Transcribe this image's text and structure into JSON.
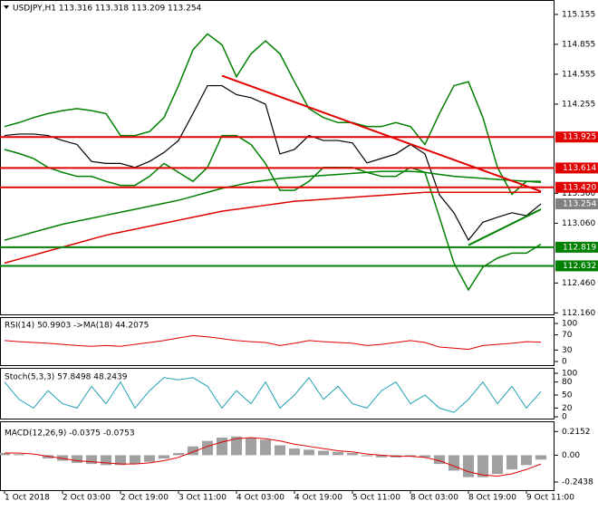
{
  "chart_data": [
    {
      "type": "line",
      "title": "USDJPY,H1  113.316 113.318 113.209 113.254",
      "categories": [
        "1 Oct 2018",
        null,
        null,
        null,
        "2 Oct 03:00",
        null,
        null,
        null,
        "2 Oct 19:00",
        null,
        null,
        null,
        "3 Oct 11:00",
        null,
        null,
        null,
        "4 Oct 03:00",
        null,
        null,
        null,
        "4 Oct 19:00",
        null,
        null,
        null,
        "5 Oct 11:00",
        null,
        null,
        null,
        "8 Oct 03:00",
        null,
        null,
        null,
        "8 Oct 19:00",
        null,
        null,
        null,
        "9 Oct 11:00",
        null
      ],
      "ylim": [
        112.145,
        115.3
      ],
      "yticks": [
        115.155,
        114.855,
        114.555,
        114.255,
        {
          "value": 113.36,
          "label": "113.360"
        },
        {
          "value": 113.06,
          "label": "113.060"
        },
        {
          "value": 112.46,
          "label": "112.460"
        },
        {
          "value": 112.16,
          "label": "112.160"
        }
      ],
      "series": [
        {
          "color": "#000000",
          "values": [
            113.94,
            113.955,
            113.955,
            113.94,
            113.89,
            113.85,
            113.68,
            113.66,
            113.66,
            113.62,
            113.68,
            113.77,
            113.89,
            114.16,
            114.44,
            114.44,
            114.35,
            114.32,
            114.255,
            113.755,
            113.8,
            113.94,
            113.89,
            113.89,
            113.865,
            113.665,
            113.71,
            113.755,
            113.85,
            113.755,
            113.345,
            113.165,
            112.89,
            113.07,
            113.12,
            113.165,
            113.135,
            113.254
          ]
        },
        {
          "color": "#008000",
          "values": [
            114.03,
            114.07,
            114.12,
            114.16,
            114.19,
            114.21,
            114.19,
            114.16,
            113.94,
            113.94,
            113.98,
            114.12,
            114.44,
            114.8,
            114.96,
            114.85,
            114.53,
            114.76,
            114.89,
            114.76,
            114.48,
            114.21,
            114.12,
            114.07,
            114.07,
            114.03,
            114.03,
            114.07,
            114.03,
            113.85,
            114.16,
            114.44,
            114.48,
            114.12,
            113.62,
            113.35,
            113.48,
            113.48
          ]
        },
        {
          "color": "#008000",
          "values": [
            113.8,
            113.76,
            113.71,
            113.62,
            113.57,
            113.53,
            113.53,
            113.48,
            113.44,
            113.44,
            113.53,
            113.66,
            113.57,
            113.48,
            113.62,
            113.94,
            113.94,
            113.85,
            113.66,
            113.39,
            113.39,
            113.48,
            113.62,
            113.62,
            113.62,
            113.57,
            113.53,
            113.53,
            113.62,
            113.57,
            113.12,
            112.66,
            112.39,
            112.62,
            112.71,
            112.76,
            112.76,
            112.85
          ]
        },
        {
          "color": "#e00000",
          "values": [
            112.66,
            112.7,
            112.74,
            112.78,
            112.82,
            112.86,
            112.9,
            112.94,
            112.97,
            113.0,
            113.03,
            113.06,
            113.09,
            113.12,
            113.15,
            113.18,
            113.2,
            113.22,
            113.24,
            113.26,
            113.28,
            113.29,
            113.3,
            113.31,
            113.32,
            113.33,
            113.34,
            113.35,
            113.36,
            113.37,
            113.37,
            113.37,
            113.37,
            113.37,
            113.37,
            113.37,
            113.37,
            113.37
          ]
        },
        {
          "color": "#008000",
          "values": [
            112.89,
            112.93,
            112.97,
            113.01,
            113.05,
            113.08,
            113.11,
            113.14,
            113.17,
            113.2,
            113.23,
            113.26,
            113.29,
            113.33,
            113.37,
            113.41,
            113.44,
            113.47,
            113.49,
            113.51,
            113.52,
            113.53,
            113.54,
            113.55,
            113.56,
            113.57,
            113.58,
            113.58,
            113.58,
            113.57,
            113.55,
            113.53,
            113.52,
            113.51,
            113.5,
            113.49,
            113.48,
            113.47
          ]
        }
      ],
      "levels": [
        {
          "value": 113.925,
          "label": "113.925",
          "color": "#e00000"
        },
        {
          "value": 113.614,
          "label": "113.614",
          "color": "#e00000"
        },
        {
          "value": 113.42,
          "label": "113.420",
          "color": "#e00000"
        },
        {
          "value": 112.819,
          "label": "112.819",
          "color": "#008000"
        },
        {
          "value": 112.632,
          "label": "112.632",
          "color": "#008000"
        }
      ],
      "current": {
        "value": 113.254,
        "label": "113.254",
        "color": "#808080"
      },
      "trendlines": [
        {
          "color": "#e00000",
          "points": [
            [
              15,
              114.54
            ],
            [
              37,
              113.38
            ]
          ]
        },
        {
          "color": "#008000",
          "points": [
            [
              32,
              112.84
            ],
            [
              37,
              113.2
            ]
          ]
        }
      ]
    },
    {
      "type": "line",
      "title": "RSI(14) 50.9903 ->MA(18) 44.2075",
      "ylim": [
        0,
        100
      ],
      "yticks": [
        100,
        70,
        30,
        0
      ],
      "color": "#e00000",
      "values": [
        55,
        52,
        50,
        48,
        45,
        42,
        40,
        42,
        40,
        45,
        50,
        55,
        62,
        68,
        65,
        60,
        55,
        52,
        50,
        42,
        48,
        55,
        52,
        50,
        48,
        42,
        45,
        50,
        55,
        50,
        38,
        35,
        32,
        42,
        45,
        48,
        52,
        51
      ]
    },
    {
      "type": "line",
      "title": "Stoch(5,3,3) 57.8498 48.2439",
      "ylim": [
        0,
        100
      ],
      "yticks": [
        100,
        80,
        50,
        20,
        0
      ],
      "color": "#20a0b0",
      "values": [
        80,
        40,
        20,
        60,
        30,
        20,
        70,
        30,
        80,
        20,
        60,
        90,
        85,
        90,
        70,
        20,
        60,
        30,
        80,
        20,
        50,
        90,
        40,
        70,
        30,
        20,
        60,
        80,
        30,
        50,
        20,
        10,
        40,
        80,
        30,
        70,
        20,
        58
      ]
    },
    {
      "type": "bar",
      "title": "MACD(12,26,9) -0.0375 -0.0753",
      "ylim": [
        -0.31,
        0.3
      ],
      "yticks": [
        0.2152,
        {
          "value": 0,
          "label": "0.00"
        },
        -0.2438
      ],
      "color": "#a0a0a0",
      "values": [
        0.02,
        0.01,
        0,
        -0.03,
        -0.05,
        -0.07,
        -0.08,
        -0.09,
        -0.09,
        -0.08,
        -0.06,
        -0.03,
        0.02,
        0.08,
        0.13,
        0.16,
        0.17,
        0.16,
        0.14,
        0.09,
        0.06,
        0.05,
        0.04,
        0.03,
        0.02,
        -0.01,
        -0.02,
        -0.02,
        -0.01,
        -0.02,
        -0.08,
        -0.14,
        -0.2,
        -0.2,
        -0.17,
        -0.13,
        -0.09,
        -0.04
      ],
      "signal": {
        "color": "#e00000",
        "values": [
          0.02,
          0.02,
          0.01,
          -0.01,
          -0.03,
          -0.05,
          -0.06,
          -0.07,
          -0.08,
          -0.08,
          -0.07,
          -0.05,
          -0.02,
          0.03,
          0.08,
          0.12,
          0.15,
          0.16,
          0.15,
          0.13,
          0.1,
          0.08,
          0.06,
          0.04,
          0.03,
          0.01,
          0,
          -0.01,
          -0.01,
          -0.02,
          -0.05,
          -0.1,
          -0.15,
          -0.18,
          -0.19,
          -0.17,
          -0.13,
          -0.08
        ]
      }
    }
  ]
}
